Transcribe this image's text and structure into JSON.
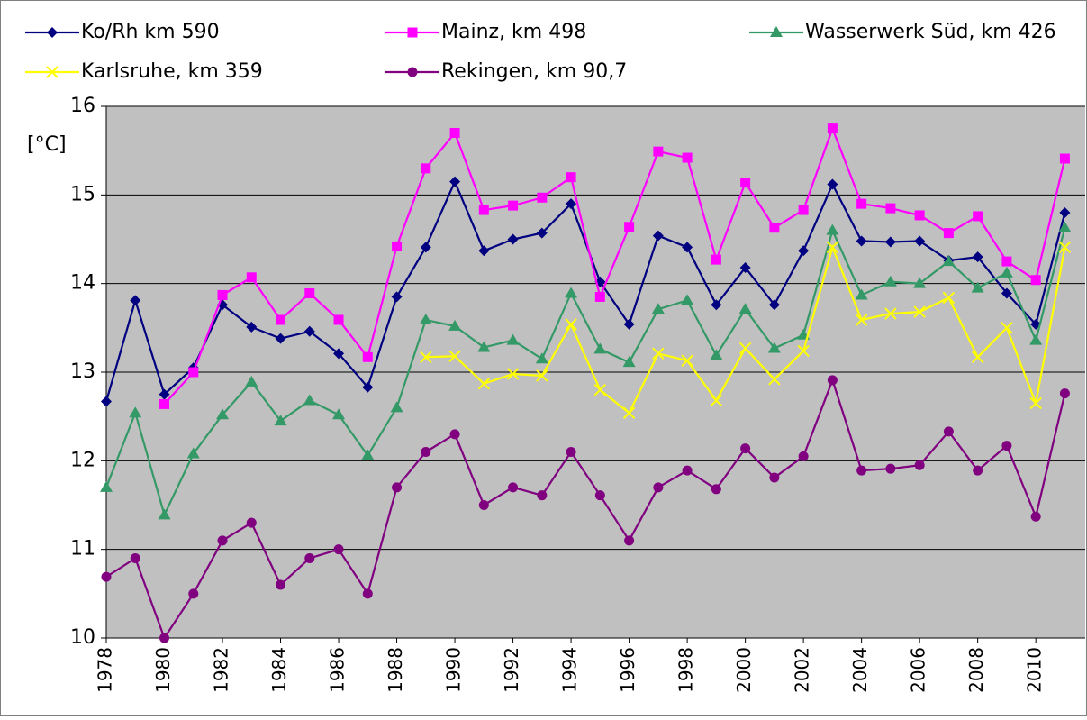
{
  "chart_data": {
    "type": "line",
    "y_label": "[°C]",
    "x": [
      1978,
      1979,
      1980,
      1981,
      1982,
      1983,
      1984,
      1985,
      1986,
      1987,
      1988,
      1989,
      1990,
      1991,
      1992,
      1993,
      1994,
      1995,
      1996,
      1997,
      1998,
      1999,
      2000,
      2001,
      2002,
      2003,
      2004,
      2005,
      2006,
      2007,
      2008,
      2009,
      2010,
      2011
    ],
    "xlim": [
      1978,
      2011.7
    ],
    "xticks": [
      1978,
      1980,
      1982,
      1984,
      1986,
      1988,
      1990,
      1992,
      1994,
      1996,
      1998,
      2000,
      2002,
      2004,
      2006,
      2008,
      2010
    ],
    "ylim": [
      10,
      16
    ],
    "yticks": [
      10,
      11,
      12,
      13,
      14,
      15,
      16
    ],
    "grid": true,
    "series": [
      {
        "name": "Ko/Rh km 590",
        "color": "#000080",
        "marker": "diamond",
        "values": [
          12.67,
          13.81,
          12.75,
          13.05,
          13.76,
          13.51,
          13.38,
          13.46,
          13.21,
          12.83,
          13.85,
          14.41,
          15.15,
          14.37,
          14.5,
          14.57,
          14.9,
          14.02,
          13.54,
          14.54,
          14.41,
          13.76,
          14.18,
          13.76,
          14.37,
          15.12,
          14.48,
          14.47,
          14.48,
          14.26,
          14.3,
          13.89,
          13.54,
          14.8
        ]
      },
      {
        "name": "Mainz, km 498",
        "color": "#ff00ff",
        "marker": "square",
        "values": [
          null,
          null,
          12.64,
          13.0,
          13.87,
          14.07,
          13.59,
          13.89,
          13.59,
          13.17,
          14.42,
          15.3,
          15.7,
          14.83,
          14.88,
          14.97,
          15.2,
          13.85,
          14.64,
          15.49,
          15.42,
          14.27,
          15.14,
          14.63,
          14.83,
          15.75,
          14.9,
          14.85,
          14.77,
          14.57,
          14.76,
          14.25,
          14.04,
          15.41
        ]
      },
      {
        "name": "Wasserwerk Süd, km 426",
        "color": "#339966",
        "marker": "triangle",
        "values": [
          11.7,
          12.54,
          11.39,
          12.08,
          12.52,
          12.89,
          12.45,
          12.68,
          12.52,
          12.06,
          12.6,
          13.59,
          13.52,
          13.28,
          13.36,
          13.15,
          13.89,
          13.26,
          13.11,
          13.71,
          13.81,
          13.19,
          13.71,
          13.27,
          13.42,
          14.6,
          13.87,
          14.02,
          14.0,
          14.25,
          13.95,
          14.12,
          13.36,
          14.63
        ]
      },
      {
        "name": "Karlsruhe, km 359",
        "color": "#ffff00",
        "marker": "x",
        "values": [
          null,
          null,
          null,
          null,
          null,
          null,
          null,
          null,
          null,
          null,
          null,
          13.17,
          13.18,
          12.87,
          12.98,
          12.96,
          13.54,
          12.8,
          12.54,
          13.21,
          13.13,
          12.68,
          13.27,
          12.92,
          13.24,
          14.41,
          13.59,
          13.66,
          13.68,
          13.84,
          13.17,
          13.5,
          12.65,
          14.41
        ]
      },
      {
        "name": "Rekingen, km 90,7",
        "color": "#800080",
        "marker": "circle",
        "values": [
          10.69,
          10.9,
          10.0,
          10.5,
          11.1,
          11.3,
          10.6,
          10.9,
          11.0,
          10.5,
          11.7,
          12.1,
          12.3,
          11.5,
          11.7,
          11.61,
          12.1,
          11.61,
          11.1,
          11.7,
          11.89,
          11.68,
          12.14,
          11.81,
          12.05,
          12.91,
          11.89,
          11.91,
          11.95,
          12.33,
          11.89,
          12.17,
          11.37,
          12.76
        ]
      }
    ]
  }
}
